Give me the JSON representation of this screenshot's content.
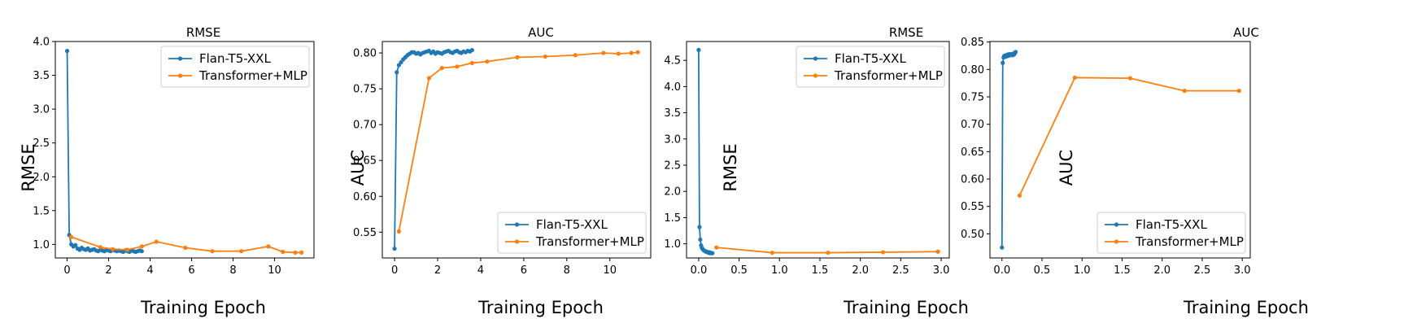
{
  "colors": {
    "flan": "#1f77b4",
    "transformer": "#ff7f0e"
  },
  "chart_data": [
    {
      "type": "line",
      "title": "RMSE",
      "xlabel": "Training Epoch",
      "ylabel": "RMSE",
      "xlim": [
        -0.57,
        11.9
      ],
      "ylim": [
        0.8,
        4.0
      ],
      "xticks": [
        "0",
        "2",
        "4",
        "6",
        "8",
        "10"
      ],
      "yticks": [
        "1.0",
        "1.5",
        "2.0",
        "2.5",
        "3.0",
        "3.5",
        "4.0"
      ],
      "legend_position": "top-right",
      "series": [
        {
          "name": "Flan-T5-XXL",
          "x": [
            0,
            0.1,
            0.2,
            0.3,
            0.4,
            0.5,
            0.6,
            0.7,
            0.8,
            0.9,
            1.0,
            1.1,
            1.2,
            1.3,
            1.4,
            1.5,
            1.6,
            1.7,
            1.8,
            1.9,
            2.0,
            2.1,
            2.2,
            2.3,
            2.4,
            2.5,
            2.6,
            2.7,
            2.8,
            2.9,
            3.0,
            3.1,
            3.2,
            3.3,
            3.4,
            3.5,
            3.6
          ],
          "y": [
            3.86,
            1.14,
            1.0,
            0.97,
            0.99,
            0.94,
            0.92,
            0.95,
            0.93,
            0.92,
            0.94,
            0.91,
            0.92,
            0.93,
            0.91,
            0.9,
            0.92,
            0.91,
            0.9,
            0.92,
            0.91,
            0.9,
            0.92,
            0.91,
            0.9,
            0.91,
            0.9,
            0.89,
            0.91,
            0.9,
            0.89,
            0.91,
            0.9,
            0.89,
            0.9,
            0.91,
            0.9
          ]
        },
        {
          "name": "Transformer+MLP",
          "x": [
            0.2,
            1.6,
            2.2,
            2.9,
            3.6,
            4.3,
            5.7,
            7.0,
            8.4,
            9.7,
            10.4,
            11.0,
            11.3
          ],
          "y": [
            1.11,
            0.96,
            0.93,
            0.92,
            0.97,
            1.04,
            0.95,
            0.9,
            0.9,
            0.97,
            0.89,
            0.88,
            0.88
          ]
        }
      ]
    },
    {
      "type": "line",
      "title": "AUC",
      "xlabel": "Training Epoch",
      "ylabel": "AUC",
      "xlim": [
        -0.57,
        11.9
      ],
      "ylim": [
        0.514,
        0.816
      ],
      "xticks": [
        "0",
        "2",
        "4",
        "6",
        "8",
        "10"
      ],
      "yticks": [
        "0.55",
        "0.60",
        "0.65",
        "0.70",
        "0.75",
        "0.80"
      ],
      "legend_position": "bottom-right",
      "series": [
        {
          "name": "Flan-T5-XXL",
          "x": [
            0,
            0.1,
            0.2,
            0.3,
            0.4,
            0.5,
            0.6,
            0.7,
            0.8,
            0.9,
            1.0,
            1.1,
            1.2,
            1.3,
            1.4,
            1.5,
            1.6,
            1.7,
            1.8,
            1.9,
            2.0,
            2.1,
            2.2,
            2.3,
            2.4,
            2.5,
            2.6,
            2.7,
            2.8,
            2.9,
            3.0,
            3.1,
            3.2,
            3.3,
            3.4,
            3.5,
            3.6
          ],
          "y": [
            0.527,
            0.773,
            0.783,
            0.787,
            0.791,
            0.794,
            0.797,
            0.799,
            0.801,
            0.801,
            0.799,
            0.8,
            0.798,
            0.8,
            0.801,
            0.802,
            0.803,
            0.8,
            0.802,
            0.799,
            0.801,
            0.8,
            0.799,
            0.801,
            0.802,
            0.803,
            0.801,
            0.8,
            0.802,
            0.803,
            0.801,
            0.8,
            0.802,
            0.801,
            0.803,
            0.802,
            0.804
          ]
        },
        {
          "name": "Transformer+MLP",
          "x": [
            0.2,
            1.6,
            2.2,
            2.9,
            3.6,
            4.3,
            5.7,
            7.0,
            8.4,
            9.7,
            10.4,
            11.0,
            11.3
          ],
          "y": [
            0.551,
            0.765,
            0.779,
            0.781,
            0.786,
            0.788,
            0.794,
            0.795,
            0.797,
            0.8,
            0.799,
            0.8,
            0.801
          ]
        }
      ]
    },
    {
      "type": "line",
      "title": "RMSE",
      "xlabel": "Training Epoch",
      "ylabel": "RMSE",
      "xlim": [
        -0.15,
        3.1
      ],
      "ylim": [
        0.73,
        4.86
      ],
      "xticks": [
        "0.0",
        "0.5",
        "1.0",
        "1.5",
        "2.0",
        "2.5",
        "3.0"
      ],
      "yticks": [
        "1.0",
        "1.5",
        "2.0",
        "2.5",
        "3.0",
        "3.5",
        "4.0",
        "4.5"
      ],
      "legend_position": "top-right",
      "series": [
        {
          "name": "Flan-T5-XXL",
          "x": [
            0,
            0.01,
            0.02,
            0.03,
            0.04,
            0.05,
            0.06,
            0.07,
            0.08,
            0.09,
            0.1,
            0.11,
            0.12,
            0.13,
            0.14,
            0.15,
            0.16,
            0.17
          ],
          "y": [
            4.7,
            1.32,
            1.08,
            0.97,
            0.92,
            0.9,
            0.88,
            0.87,
            0.86,
            0.85,
            0.85,
            0.84,
            0.83,
            0.84,
            0.82,
            0.83,
            0.82,
            0.82
          ]
        },
        {
          "name": "Transformer+MLP",
          "x": [
            0.22,
            0.91,
            1.6,
            2.28,
            2.96
          ],
          "y": [
            0.93,
            0.83,
            0.83,
            0.84,
            0.85
          ]
        }
      ]
    },
    {
      "type": "line",
      "title": "AUC",
      "xlabel": "Training Epoch",
      "ylabel": "AUC",
      "xlim": [
        -0.15,
        3.1
      ],
      "ylim": [
        0.456,
        0.851
      ],
      "xticks": [
        "0.0",
        "0.5",
        "1.0",
        "1.5",
        "2.0",
        "2.5",
        "3.0"
      ],
      "yticks": [
        "0.50",
        "0.55",
        "0.60",
        "0.65",
        "0.70",
        "0.75",
        "0.80",
        "0.85"
      ],
      "legend_position": "bottom-right",
      "series": [
        {
          "name": "Flan-T5-XXL",
          "x": [
            0,
            0.01,
            0.02,
            0.03,
            0.04,
            0.05,
            0.06,
            0.07,
            0.08,
            0.09,
            0.1,
            0.11,
            0.12,
            0.13,
            0.14,
            0.15,
            0.16,
            0.17
          ],
          "y": [
            0.475,
            0.812,
            0.822,
            0.825,
            0.823,
            0.826,
            0.824,
            0.827,
            0.825,
            0.828,
            0.826,
            0.827,
            0.828,
            0.826,
            0.829,
            0.827,
            0.829,
            0.832
          ]
        },
        {
          "name": "Transformer+MLP",
          "x": [
            0.22,
            0.91,
            1.6,
            2.28,
            2.96
          ],
          "y": [
            0.57,
            0.785,
            0.784,
            0.761,
            0.761
          ]
        }
      ]
    }
  ]
}
